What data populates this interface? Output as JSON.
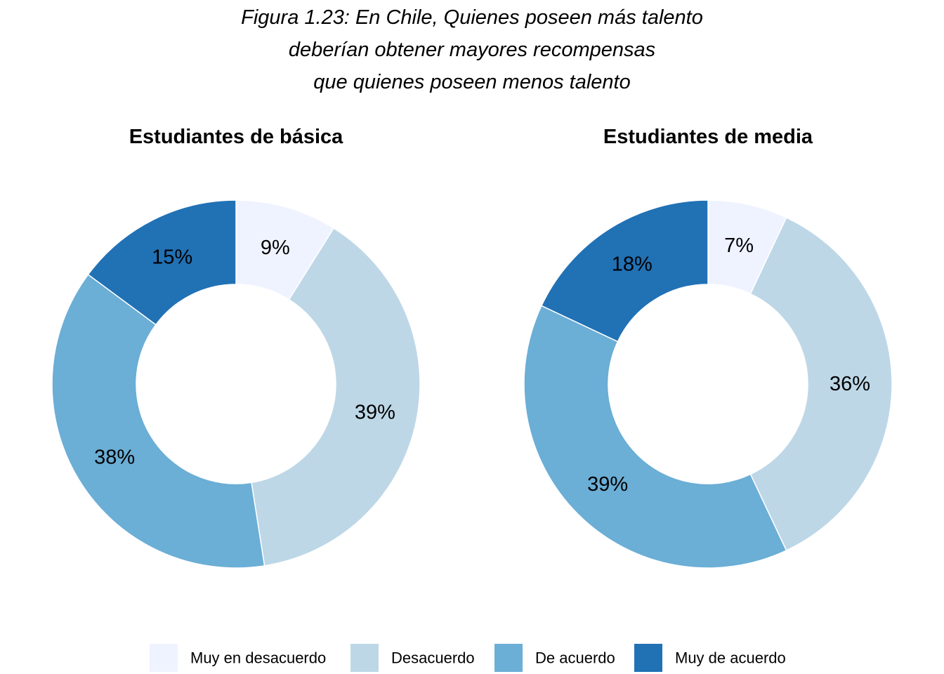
{
  "title_lines": [
    "Figura 1.23: En Chile, Quienes poseen más talento",
    "deberían obtener mayores recompensas",
    "que quienes poseen menos talento"
  ],
  "colors": {
    "Muy en desacuerdo": "#eff3ff",
    "Desacuerdo": "#bdd7e7",
    "De acuerdo": "#6baed6",
    "Muy de acuerdo": "#2171b5"
  },
  "chart_data": [
    {
      "type": "pie",
      "title": "Estudiantes de básica",
      "categories": [
        "Muy en desacuerdo",
        "Desacuerdo",
        "De acuerdo",
        "Muy de acuerdo"
      ],
      "values": [
        9,
        39,
        38,
        15
      ],
      "labels": [
        "9%",
        "39%",
        "38%",
        "15%"
      ],
      "legend_position": "bottom"
    },
    {
      "type": "pie",
      "title": "Estudiantes de media",
      "categories": [
        "Muy en desacuerdo",
        "Desacuerdo",
        "De acuerdo",
        "Muy de acuerdo"
      ],
      "values": [
        7,
        36,
        39,
        18
      ],
      "labels": [
        "7%",
        "36%",
        "39%",
        "18%"
      ],
      "legend_position": "bottom"
    }
  ],
  "legend": [
    "Muy en desacuerdo",
    "Desacuerdo",
    "De acuerdo",
    "Muy de acuerdo"
  ]
}
